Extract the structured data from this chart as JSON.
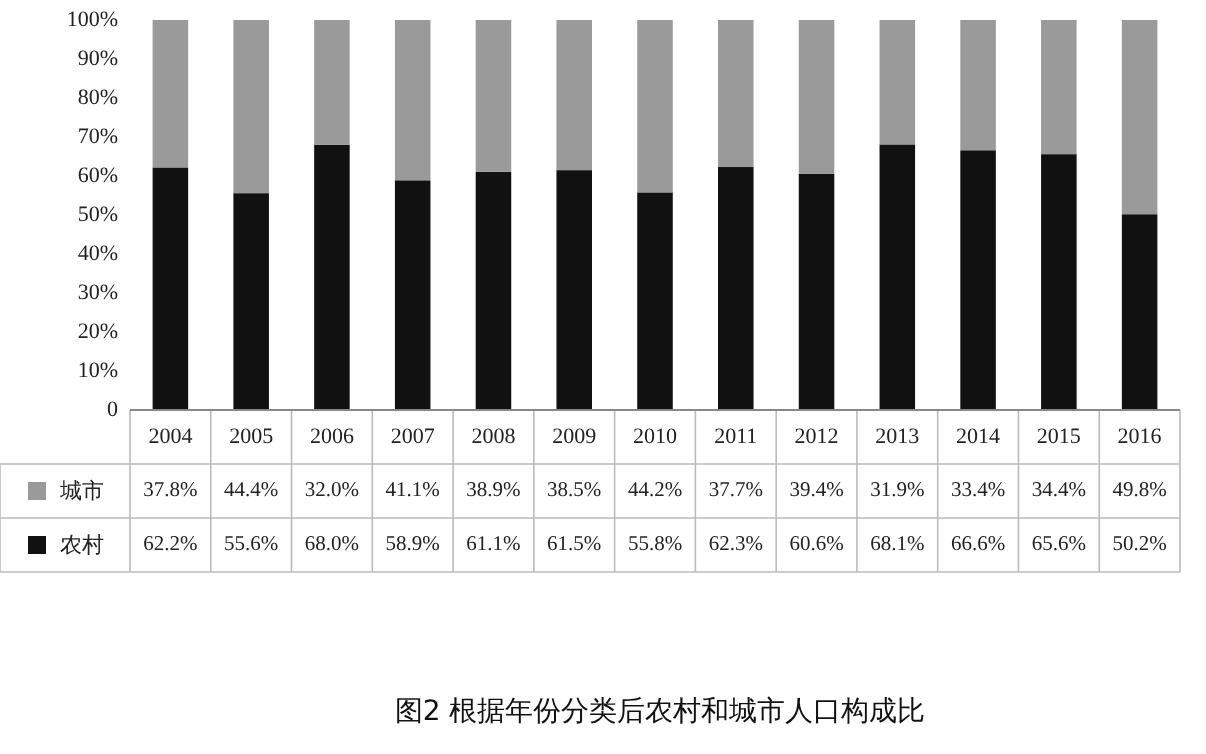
{
  "chart_data": {
    "type": "bar",
    "stacked": true,
    "title": "图2  根据年份分类后农村和城市人口构成比",
    "categories": [
      "2004",
      "2005",
      "2006",
      "2007",
      "2008",
      "2009",
      "2010",
      "2011",
      "2012",
      "2013",
      "2014",
      "2015",
      "2016"
    ],
    "series": [
      {
        "name": "农村",
        "color": "#111111",
        "values": [
          62.2,
          55.6,
          68.0,
          58.9,
          61.1,
          61.5,
          55.8,
          62.3,
          60.6,
          68.1,
          66.6,
          65.6,
          50.2
        ],
        "value_labels": [
          "62.2%",
          "55.6%",
          "68.0%",
          "58.9%",
          "61.1%",
          "61.5%",
          "55.8%",
          "62.3%",
          "60.6%",
          "68.1%",
          "66.6%",
          "65.6%",
          "50.2%"
        ]
      },
      {
        "name": "城市",
        "color": "#9a9a9a",
        "values": [
          37.8,
          44.4,
          32.0,
          41.1,
          38.9,
          38.5,
          44.2,
          37.7,
          39.4,
          31.9,
          33.4,
          34.4,
          49.8
        ],
        "value_labels": [
          "37.8%",
          "44.4%",
          "32.0%",
          "41.1%",
          "38.9%",
          "38.5%",
          "44.2%",
          "37.7%",
          "39.4%",
          "31.9%",
          "33.4%",
          "34.4%",
          "49.8%"
        ]
      }
    ],
    "ylim": [
      0,
      100
    ],
    "yticks": [
      {
        "value": 0,
        "label": "0"
      },
      {
        "value": 10,
        "label": "10%"
      },
      {
        "value": 20,
        "label": "20%"
      },
      {
        "value": 30,
        "label": "30%"
      },
      {
        "value": 40,
        "label": "40%"
      },
      {
        "value": 50,
        "label": "50%"
      },
      {
        "value": 60,
        "label": "60%"
      },
      {
        "value": 70,
        "label": "70%"
      },
      {
        "value": 80,
        "label": "80%"
      },
      {
        "value": 90,
        "label": "90%"
      },
      {
        "value": 100,
        "label": "100%"
      }
    ],
    "legend": "bottom"
  }
}
